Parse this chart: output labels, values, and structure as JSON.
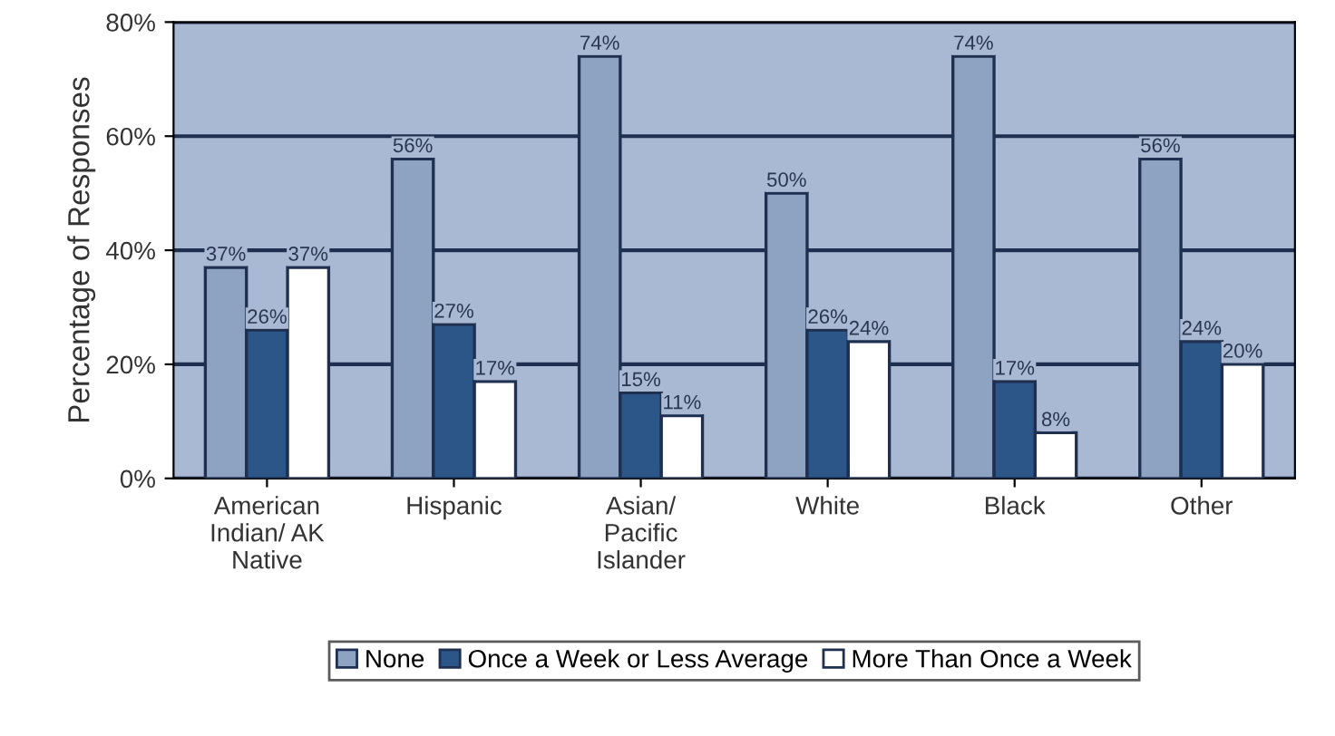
{
  "chart_data": {
    "type": "bar",
    "ylabel": "Percentage of Responses",
    "categories": [
      "American\nIndian/ AK\nNative",
      "Hispanic",
      "Asian/\nPacific\nIslander",
      "White",
      "Black",
      "Other"
    ],
    "series": [
      {
        "name": "None",
        "color": "#8ea2c2",
        "values": [
          37,
          56,
          74,
          50,
          74,
          56
        ],
        "value_labels": [
          "37%",
          "56%",
          "74%",
          "50%",
          "74%",
          "56%"
        ]
      },
      {
        "name": "Once a Week or Less Average",
        "color": "#2b5687",
        "values": [
          26,
          27,
          15,
          26,
          17,
          24
        ],
        "value_labels": [
          "26%",
          "27%",
          "15%",
          "26%",
          "17%",
          "24%"
        ]
      },
      {
        "name": "More Than Once a Week",
        "color": "#ffffff",
        "values": [
          37,
          17,
          11,
          24,
          8,
          20
        ],
        "value_labels": [
          "37%",
          "17%",
          "11%",
          "24%",
          "8%",
          "20%"
        ]
      }
    ],
    "ylim": [
      0,
      80
    ],
    "yticks": [
      {
        "value": 0,
        "label": "0%"
      },
      {
        "value": 20,
        "label": "20%"
      },
      {
        "value": 40,
        "label": "40%"
      },
      {
        "value": 60,
        "label": "60%"
      },
      {
        "value": 80,
        "label": "80%"
      }
    ],
    "grid": "y",
    "legend": "bottom"
  }
}
